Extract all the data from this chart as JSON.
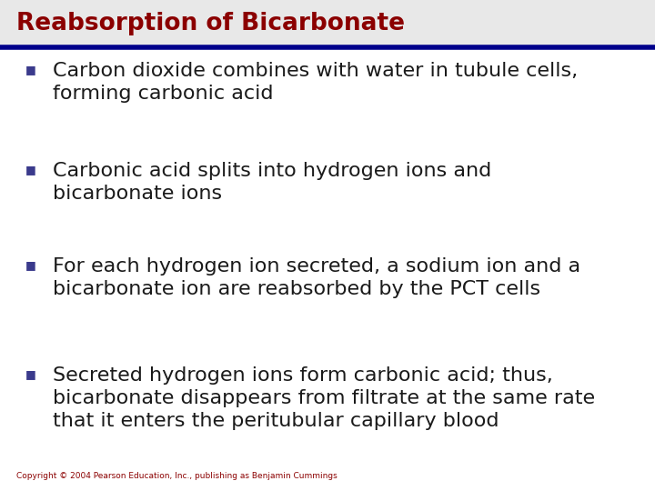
{
  "title": "Reabsorption of Bicarbonate",
  "title_color": "#8B0000",
  "title_bg_color": "#E8E8E8",
  "line_color": "#00008B",
  "bg_color": "#FFFFFF",
  "bullet_color": "#3A3A8C",
  "text_color": "#1a1a1a",
  "copyright": "Copyright © 2004 Pearson Education, Inc., publishing as Benjamin Cummings",
  "copyright_color": "#8B0000",
  "bullets": [
    "Carbon dioxide combines with water in tubule cells,\nforming carbonic acid",
    "Carbonic acid splits into hydrogen ions and\nbicarbonate ions",
    "For each hydrogen ion secreted, a sodium ion and a\nbicarbonate ion are reabsorbed by the PCT cells",
    "Secreted hydrogen ions form carbonic acid; thus,\nbicarbonate disappears from filtrate at the same rate\nthat it enters the peritubular capillary blood"
  ]
}
